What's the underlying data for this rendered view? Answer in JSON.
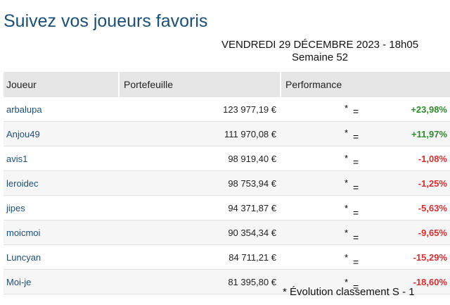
{
  "header": {
    "title": "Suivez vos joueurs favoris",
    "date": "VENDREDI 29 DÉCEMBRE 2023 - 18h05",
    "week": "Semaine 52"
  },
  "table": {
    "columns": [
      "Joueur",
      "Portefeuille",
      "Performance"
    ],
    "rows": [
      {
        "player": "arbalupa",
        "portfolio": "123 977,19 €",
        "star": "*",
        "eq": "=",
        "performance": "+23,98%"
      },
      {
        "player": "Anjou49",
        "portfolio": "111 970,08 €",
        "star": "*",
        "eq": "=",
        "performance": "+11,97%"
      },
      {
        "player": "avis1",
        "portfolio": "98 919,40 €",
        "star": "*",
        "eq": "=",
        "performance": "-1,08%"
      },
      {
        "player": "leroidec",
        "portfolio": "98 753,94 €",
        "star": "*",
        "eq": "=",
        "performance": "-1,25%"
      },
      {
        "player": "jipes",
        "portfolio": "94 371,87 €",
        "star": "*",
        "eq": "=",
        "performance": "-5,63%"
      },
      {
        "player": "moicmoi",
        "portfolio": "90 354,34 €",
        "star": "*",
        "eq": "=",
        "performance": "-9,65%"
      },
      {
        "player": "Luncyan",
        "portfolio": "84 711,21 €",
        "star": "*",
        "eq": "=",
        "performance": "-15,29%"
      },
      {
        "player": "Moi-je",
        "portfolio": "81 395,80 €",
        "star": "*",
        "eq": "=",
        "performance": "-18,60%"
      }
    ]
  },
  "footnote": "* Évolution classement S - 1"
}
